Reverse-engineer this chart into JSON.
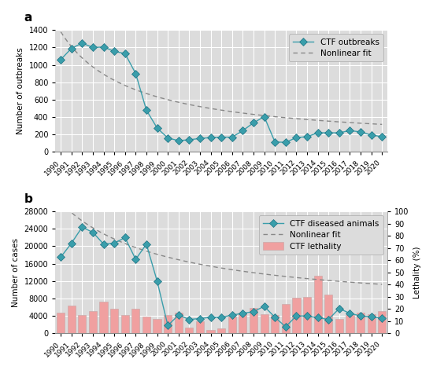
{
  "years": [
    1990,
    1991,
    1992,
    1993,
    1994,
    1995,
    1996,
    1997,
    1998,
    1999,
    2000,
    2001,
    2002,
    2003,
    2004,
    2005,
    2006,
    2007,
    2008,
    2009,
    2010,
    2011,
    2012,
    2013,
    2014,
    2015,
    2016,
    2017,
    2018,
    2019,
    2020
  ],
  "outbreaks": [
    1060,
    1190,
    1250,
    1200,
    1205,
    1155,
    1130,
    900,
    480,
    275,
    160,
    130,
    140,
    155,
    165,
    170,
    170,
    245,
    335,
    405,
    115,
    110,
    165,
    175,
    220,
    220,
    220,
    245,
    230,
    195,
    175
  ],
  "diseased": [
    17500,
    20700,
    24400,
    23200,
    20500,
    20700,
    22000,
    17000,
    20500,
    12000,
    1800,
    4200,
    3200,
    3400,
    3700,
    3700,
    4200,
    4600,
    5000,
    6200,
    3700,
    1500,
    4000,
    4000,
    3600,
    3200,
    5700,
    4600,
    4000,
    3800,
    3500
  ],
  "lethality": [
    17,
    23,
    15,
    18,
    26,
    20,
    15,
    20,
    14,
    12,
    15,
    17,
    5,
    10,
    3,
    4,
    14,
    17,
    21,
    16,
    15,
    24,
    29,
    30,
    47,
    32,
    12,
    15,
    17,
    16,
    18
  ],
  "line_color": "#3a9eab",
  "marker_color": "#3a9eab",
  "bar_color": "#f0a0a0",
  "bar_edgecolor": "#ccaaaa",
  "bg_color": "#dcdcdc",
  "fig_bg_color": "#ffffff",
  "grid_color": "#ffffff",
  "nonlinear_color": "#888888",
  "label_a": "a",
  "label_b": "b",
  "ylabel_a": "Number of outbreaks",
  "ylabel_b": "Number of cases",
  "ylabel_b2": "Lethality (%)",
  "legend_outbreaks": "CTF outbreaks",
  "legend_diseased": "CTF diseased animals",
  "legend_fit": "Nonlinear fit",
  "legend_lethality": "CTF lethality",
  "ylim_a": [
    0,
    1400
  ],
  "ylim_b": [
    0,
    28000
  ],
  "ylim_b2": [
    0,
    100
  ],
  "yticks_a": [
    0,
    200,
    400,
    600,
    800,
    1000,
    1200,
    1400
  ],
  "yticks_b": [
    0,
    4000,
    8000,
    12000,
    16000,
    20000,
    24000,
    28000
  ],
  "yticks_b2": [
    0,
    10,
    20,
    30,
    40,
    50,
    60,
    70,
    80,
    90,
    100
  ]
}
